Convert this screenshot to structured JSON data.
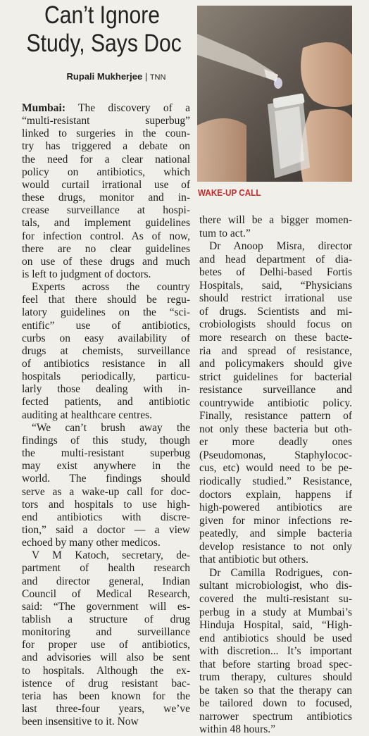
{
  "headline": {
    "lines": [
      "Can’t Ignore",
      "Study, Says Doc"
    ]
  },
  "byline": {
    "author": "Rupali Mukherjee",
    "agency": "TNN"
  },
  "photo_caption": "WAKE-UP CALL",
  "columns": [
    {
      "paragraphs": [
        {
          "dateline": "Mumbai:",
          "lines": [
            "The discovery of a",
            "“multi-resistant superbug”",
            "linked to surgeries in the coun-",
            "try has triggered a debate on",
            "the need for a clear national",
            "policy on antibiotics, which",
            "would curtail irrational use of",
            "these drugs, monitor and in-",
            "crease surveillance at hospi-",
            "tals, and implement guidelines",
            "for infection control. As of now,",
            "there are no clear guidelines",
            "on use of these drugs and much",
            "is left to judgment of doctors."
          ]
        },
        {
          "lines": [
            "Experts across the country",
            "feel that there should be regu-",
            "latory guidelines on the “sci-",
            "entific” use of antibiotics,",
            "curbs on easy availability of",
            "drugs at chemists, surveillance",
            "of antibiotics resistance in all",
            "hospitals periodically, particu-",
            "larly those dealing with in-",
            "fected patients, and antibiotic",
            "auditing at healthcare centres."
          ]
        },
        {
          "lines": [
            "“We can’t brush away the",
            "findings of this study, though",
            "the multi-resistant superbug",
            "may exist anywhere in the",
            "world. The findings should",
            "serve as a wake-up call for doc-",
            "tors and hospitals to use high-",
            "end antibiotics with discre-",
            "tion,” said a doctor — a view",
            "echoed by many other medicos."
          ]
        },
        {
          "lines": [
            "V M Katoch, secretary, de-",
            "partment of health research",
            "and director general, Indian",
            "Council of Medical Research,",
            "said: “The government will es-",
            "tablish a structure of drug",
            "monitoring and surveillance",
            "for proper use of antibiotics,",
            "and advisories will also be sent",
            "to hospitals. Although the ex-",
            "istence of drug resistant bac-",
            "teria has been known for the",
            "last three-four years, we’ve",
            "been insensitive to it. Now"
          ]
        }
      ]
    },
    {
      "paragraphs": [
        {
          "lines": [
            "there will be a bigger momen-",
            "tum to act.”"
          ]
        },
        {
          "lines": [
            "Dr Anoop Misra, director",
            "and head department of dia-",
            "betes of Delhi-based Fortis",
            "Hospitals, said, “Physicians",
            "should restrict irrational use",
            "of drugs. Scientists and mi-",
            "crobiologists should focus on",
            "more research on these bacte-",
            "ria and spread of resistance,",
            "and policymakers should give",
            "strict guidelines for bacterial",
            "resistance surveillance and",
            "countrywide antibiotic policy.",
            "Finally, resistance pattern of",
            "not only these bacteria but oth-",
            "er more deadly ones",
            "(Pseudomonas, Staphylococ-",
            "cus, etc) would need to be pe-",
            "riodically studied.” Resistance,",
            "doctors explain, happens if",
            "high-powered antibiotics are",
            "given for minor infections re-",
            "peatedly, and simple bacteria",
            "develop resistance to not only",
            "that antibiotic but others."
          ]
        },
        {
          "lines": [
            "Dr Camilla Rodrigues, con-",
            "sultant microbiologist, who dis-",
            "covered the multi-resistant su-",
            "perbug in a study at Mumbai’s",
            "Hinduja Hospital, said, “High-",
            "end antibiotics should be used",
            "with discretion... It’s important",
            "that before starting broad spec-",
            "trum therapy, cultures should",
            "be taken so that the therapy can",
            "be tailored down to focused,",
            "narrower spectrum antibiotics",
            "within 48 hours.”"
          ]
        }
      ]
    }
  ]
}
